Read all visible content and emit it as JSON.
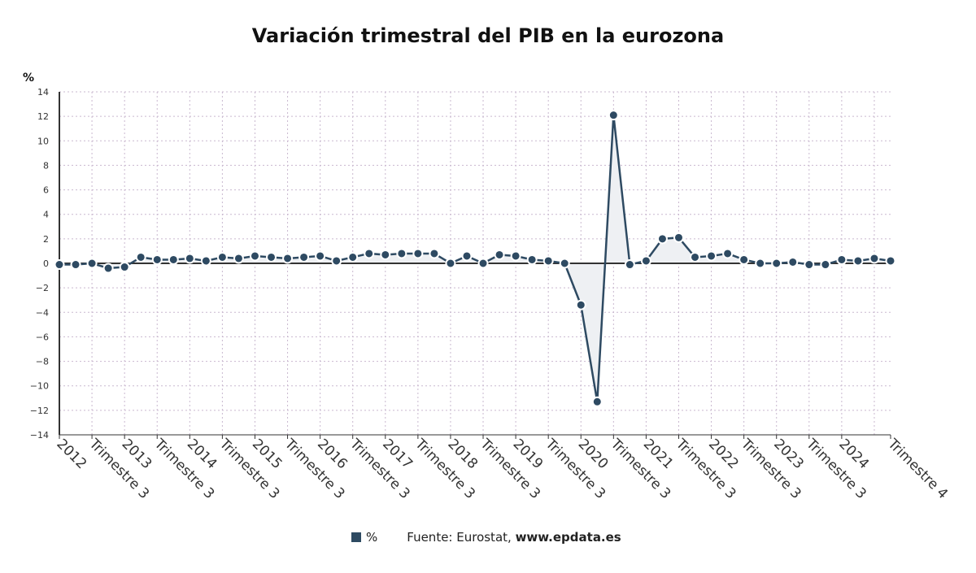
{
  "title": "Variación trimestral del PIB en la eurozona",
  "legend": {
    "series_label": "%",
    "source_prefix": "Fuente: Eurostat, ",
    "source_site": "www.epdata.es"
  },
  "colors": {
    "series": "#2e4a62",
    "fill": "#eef0f3",
    "grid": "#c9b8cf",
    "axis": "#333333"
  },
  "chart_data": {
    "type": "line",
    "title": "Variación trimestral del PIB en la eurozona",
    "ylabel": "%",
    "ylim": [
      -14,
      14
    ],
    "yticks": [
      14,
      12,
      10,
      8,
      6,
      4,
      2,
      0,
      -2,
      -4,
      -6,
      -8,
      -10,
      -12,
      -14
    ],
    "ytick_labels": [
      "14",
      "12",
      "10",
      "8",
      "6",
      "4",
      "2",
      "0",
      "−2",
      "−4",
      "−6",
      "−8",
      "−10",
      "−12",
      "−14"
    ],
    "grid": true,
    "legend_placement": "bottom",
    "x_tick_labels": [
      {
        "index": 0,
        "label": "2012"
      },
      {
        "index": 2,
        "label": "Trimestre 3"
      },
      {
        "index": 4,
        "label": "2013"
      },
      {
        "index": 6,
        "label": "Trimestre 3"
      },
      {
        "index": 8,
        "label": "2014"
      },
      {
        "index": 10,
        "label": "Trimestre 3"
      },
      {
        "index": 12,
        "label": "2015"
      },
      {
        "index": 14,
        "label": "Trimestre 3"
      },
      {
        "index": 16,
        "label": "2016"
      },
      {
        "index": 18,
        "label": "Trimestre 3"
      },
      {
        "index": 20,
        "label": "2017"
      },
      {
        "index": 22,
        "label": "Trimestre 3"
      },
      {
        "index": 24,
        "label": "2018"
      },
      {
        "index": 26,
        "label": "Trimestre 3"
      },
      {
        "index": 28,
        "label": "2019"
      },
      {
        "index": 30,
        "label": "Trimestre 3"
      },
      {
        "index": 32,
        "label": "2020"
      },
      {
        "index": 34,
        "label": "Trimestre 3"
      },
      {
        "index": 36,
        "label": "2021"
      },
      {
        "index": 38,
        "label": "Trimestre 3"
      },
      {
        "index": 40,
        "label": "2022"
      },
      {
        "index": 42,
        "label": "Trimestre 3"
      },
      {
        "index": 44,
        "label": "2023"
      },
      {
        "index": 46,
        "label": "Trimestre 3"
      },
      {
        "index": 48,
        "label": "2024"
      },
      {
        "index": 51,
        "label": "Trimestre 4"
      }
    ],
    "series": [
      {
        "name": "%",
        "values": [
          -0.1,
          -0.1,
          0.0,
          -0.4,
          -0.3,
          0.5,
          0.3,
          0.3,
          0.4,
          0.2,
          0.5,
          0.4,
          0.6,
          0.5,
          0.4,
          0.5,
          0.6,
          0.2,
          0.5,
          0.8,
          0.7,
          0.8,
          0.8,
          0.8,
          0.0,
          0.6,
          0.0,
          0.7,
          0.6,
          0.3,
          0.2,
          0.0,
          -3.4,
          -11.3,
          12.1,
          -0.1,
          0.2,
          2.0,
          2.1,
          0.5,
          0.6,
          0.8,
          0.3,
          0.0,
          0.0,
          0.1,
          -0.1,
          -0.1,
          0.3,
          0.2,
          0.4,
          0.2
        ]
      }
    ]
  }
}
